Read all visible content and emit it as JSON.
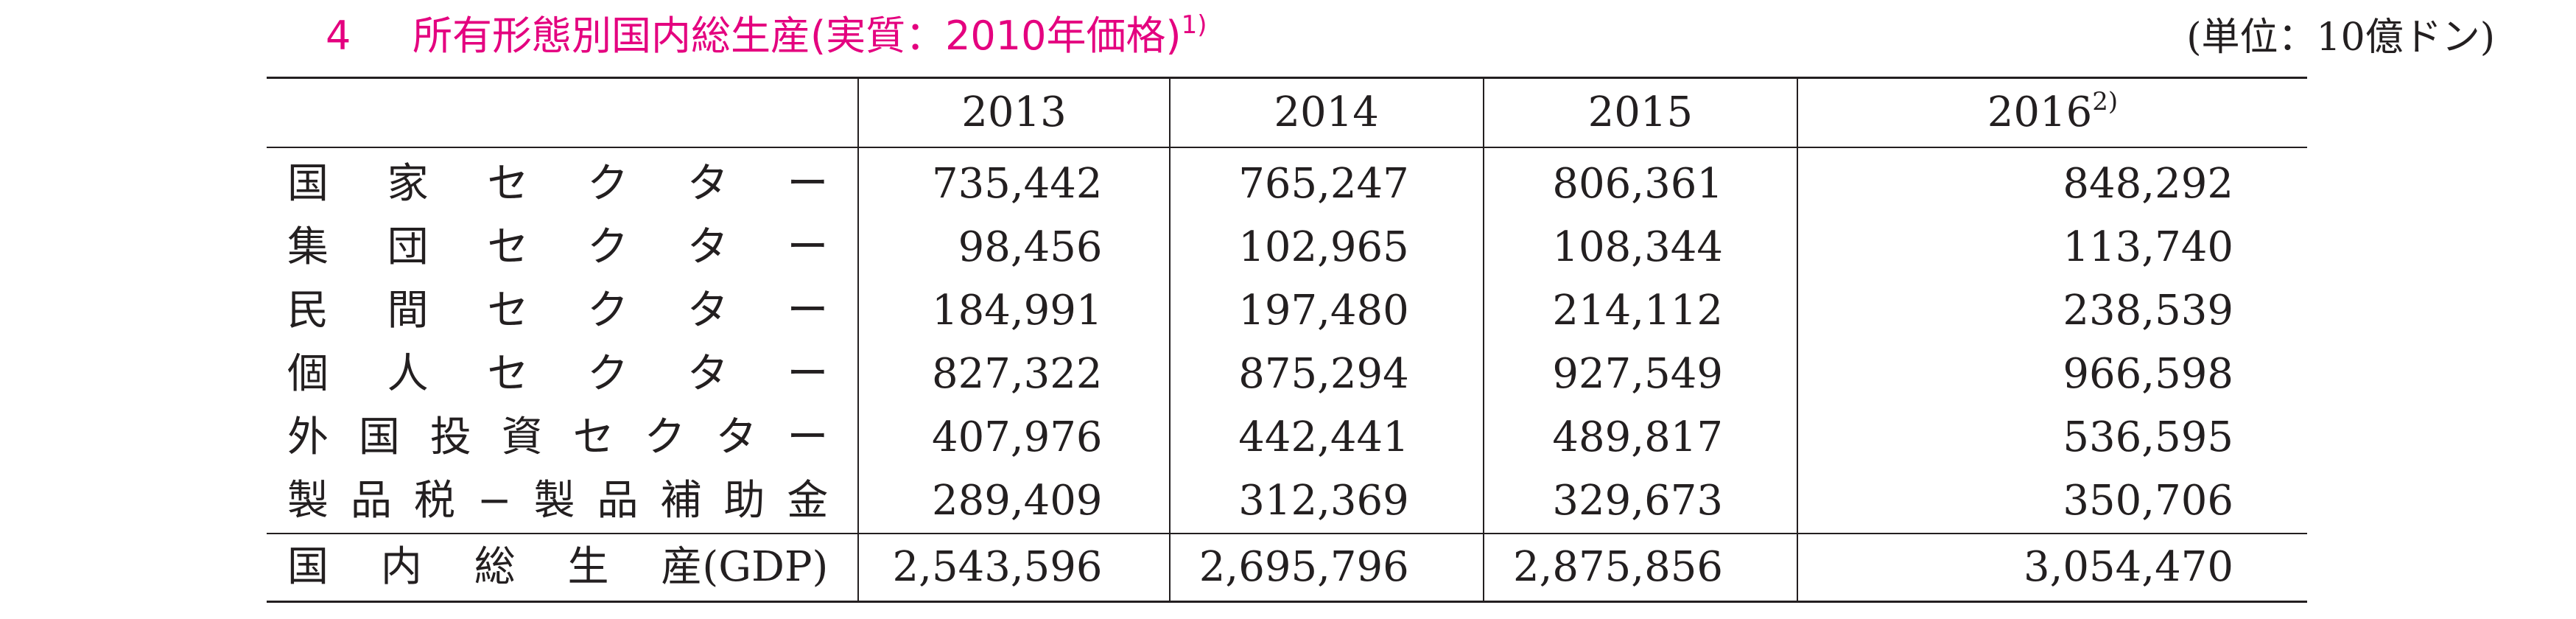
{
  "title": {
    "number": "4",
    "text": "所有形態別国内総生産(実質：2010年価格)",
    "note": "1)"
  },
  "unit": "(単位：10億ドン)",
  "table": {
    "headers": [
      "2013",
      "2014",
      "2015",
      "2016"
    ],
    "header_last_note": "2)",
    "rows": [
      {
        "label_chars": [
          "国",
          "家",
          "セ",
          "ク",
          "タ",
          "ー"
        ],
        "values": [
          "735,442",
          "765,247",
          "806,361",
          "848,292"
        ]
      },
      {
        "label_chars": [
          "集",
          "団",
          "セ",
          "ク",
          "タ",
          "ー"
        ],
        "values": [
          "98,456",
          "102,965",
          "108,344",
          "113,740"
        ]
      },
      {
        "label_chars": [
          "民",
          "間",
          "セ",
          "ク",
          "タ",
          "ー"
        ],
        "values": [
          "184,991",
          "197,480",
          "214,112",
          "238,539"
        ]
      },
      {
        "label_chars": [
          "個",
          "人",
          "セ",
          "ク",
          "タ",
          "ー"
        ],
        "values": [
          "827,322",
          "875,294",
          "927,549",
          "966,598"
        ]
      },
      {
        "label_chars": [
          "外",
          "国",
          "投",
          "資",
          "セ",
          "ク",
          "タ",
          "ー"
        ],
        "values": [
          "407,976",
          "442,441",
          "489,817",
          "536,595"
        ]
      },
      {
        "label_chars": [
          "製",
          "品",
          "税",
          "−",
          "製",
          "品",
          "補",
          "助",
          "金"
        ],
        "values": [
          "289,409",
          "312,369",
          "329,673",
          "350,706"
        ]
      }
    ],
    "total": {
      "label_chars": [
        "国",
        "内",
        "総",
        "生",
        "産(GDP)"
      ],
      "values": [
        "2,543,596",
        "2,695,796",
        "2,875,856",
        "3,054,470"
      ]
    }
  }
}
